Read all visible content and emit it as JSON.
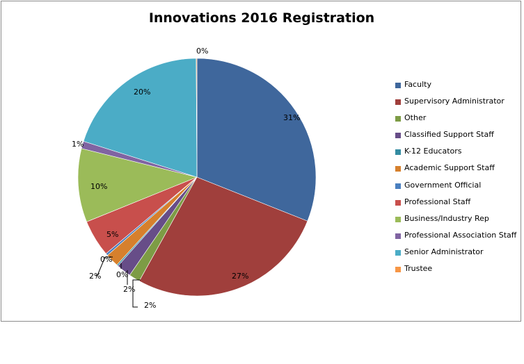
{
  "chart_data": {
    "type": "pie",
    "title": "Innovations 2016 Registration",
    "legend_position": "right",
    "slices": [
      {
        "name": "Faculty",
        "value": 31,
        "label": "31%",
        "color": "#3f679c"
      },
      {
        "name": "Supervisory Administrator",
        "value": 27,
        "label": "27%",
        "color": "#a03f3c"
      },
      {
        "name": "Other",
        "value": 1.5,
        "label": "2%",
        "color": "#7d9c45"
      },
      {
        "name": "Classified Support Staff",
        "value": 2,
        "label": "2%",
        "color": "#674d88"
      },
      {
        "name": "K-12 Educators",
        "value": 0.2,
        "label": "0%",
        "color": "#348ca2"
      },
      {
        "name": "Academic Support Staff",
        "value": 1.8,
        "label": "2%",
        "color": "#d6802d"
      },
      {
        "name": "Government Official",
        "value": 0.3,
        "label": "0%",
        "color": "#4a7fbf"
      },
      {
        "name": "Professional Staff",
        "value": 5,
        "label": "5%",
        "color": "#c84f4c"
      },
      {
        "name": "Business/Industry Rep",
        "value": 10,
        "label": "10%",
        "color": "#9bbb59"
      },
      {
        "name": "Professional Association Staff",
        "value": 1,
        "label": "1%",
        "color": "#8064a2"
      },
      {
        "name": "Senior Administrator",
        "value": 20,
        "label": "20%",
        "color": "#4bacc6"
      },
      {
        "name": "Trustee",
        "value": 0.1,
        "label": "0%",
        "color": "#f79646"
      }
    ]
  }
}
